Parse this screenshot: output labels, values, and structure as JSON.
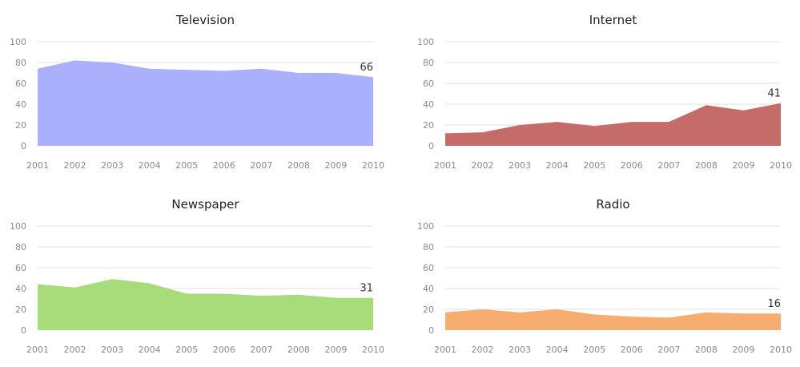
{
  "chart_data": [
    {
      "type": "area",
      "title": "Television",
      "x": [
        "2001",
        "2002",
        "2003",
        "2004",
        "2005",
        "2006",
        "2007",
        "2008",
        "2009",
        "2010"
      ],
      "values": [
        74,
        82,
        80,
        74,
        73,
        72,
        74,
        70,
        70,
        66
      ],
      "ylim": [
        0,
        100
      ],
      "yticks": [
        0,
        20,
        40,
        60,
        80,
        100
      ],
      "end_label": "66",
      "color": "#aab0fb",
      "grid": true
    },
    {
      "type": "area",
      "title": "Internet",
      "x": [
        "2001",
        "2002",
        "2003",
        "2004",
        "2005",
        "2006",
        "2007",
        "2008",
        "2009",
        "2010"
      ],
      "values": [
        12,
        13,
        20,
        23,
        19,
        23,
        23,
        39,
        34,
        41
      ],
      "ylim": [
        0,
        100
      ],
      "yticks": [
        0,
        20,
        40,
        60,
        80,
        100
      ],
      "end_label": "41",
      "color": "#c56b69",
      "grid": true
    },
    {
      "type": "area",
      "title": "Newspaper",
      "x": [
        "2001",
        "2002",
        "2003",
        "2004",
        "2005",
        "2006",
        "2007",
        "2008",
        "2009",
        "2010"
      ],
      "values": [
        44,
        41,
        49,
        45,
        35,
        35,
        33,
        34,
        31,
        31
      ],
      "ylim": [
        0,
        100
      ],
      "yticks": [
        0,
        20,
        40,
        60,
        80,
        100
      ],
      "end_label": "31",
      "color": "#a8dc7a",
      "grid": true
    },
    {
      "type": "area",
      "title": "Radio",
      "x": [
        "2001",
        "2002",
        "2003",
        "2004",
        "2005",
        "2006",
        "2007",
        "2008",
        "2009",
        "2010"
      ],
      "values": [
        17,
        20,
        17,
        20,
        15,
        13,
        12,
        17,
        16,
        16
      ],
      "ylim": [
        0,
        100
      ],
      "yticks": [
        0,
        20,
        40,
        60,
        80,
        100
      ],
      "end_label": "16",
      "color": "#f6ad6f",
      "grid": true
    }
  ]
}
